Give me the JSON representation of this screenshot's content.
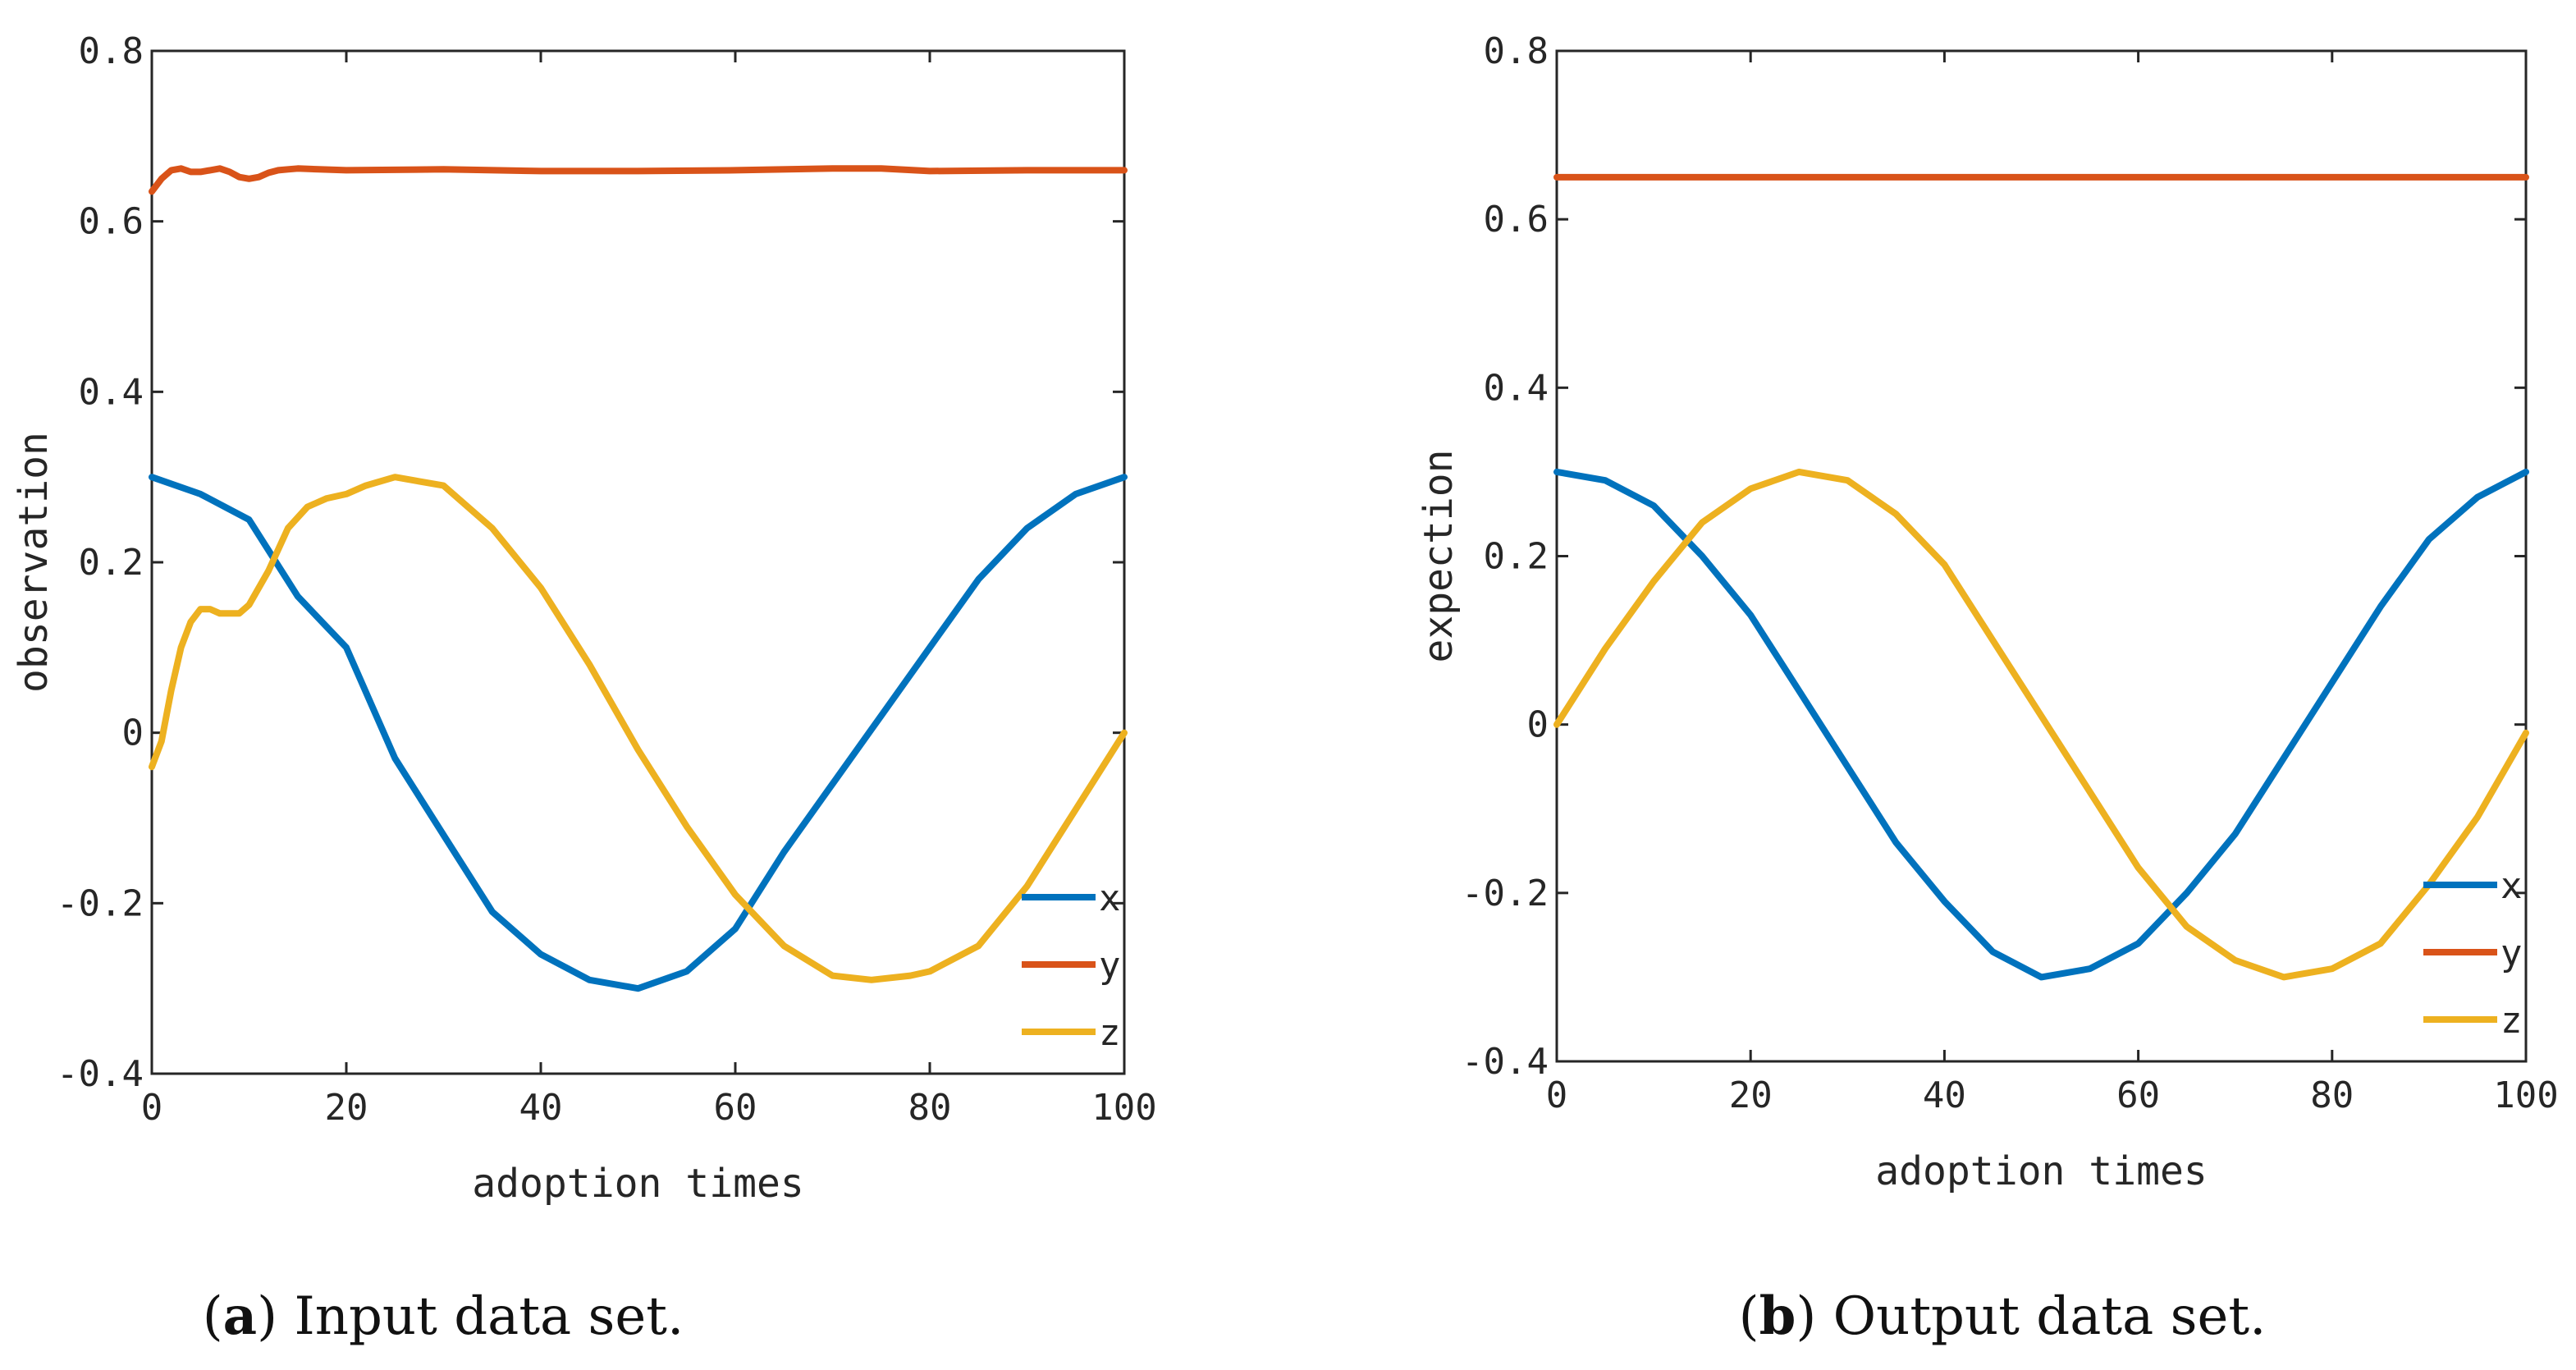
{
  "colors": {
    "x": "#0072BD",
    "y": "#D95319",
    "z": "#EDB120"
  },
  "chart_data": [
    {
      "type": "line",
      "caption_label": "a",
      "caption_text": "Input data set.",
      "xlabel": "adoption times",
      "ylabel": "observation",
      "xlim": [
        0,
        100
      ],
      "ylim": [
        -0.4,
        0.8
      ],
      "xticks": [
        "0",
        "20",
        "40",
        "60",
        "80",
        "100"
      ],
      "yticks": [
        "0.8",
        "0.6",
        "0.4",
        "0.2",
        "0",
        "-0.2",
        "-0.4"
      ],
      "legend": [
        "x",
        "y",
        "z"
      ],
      "legend_position": "bottom-right",
      "series": [
        {
          "name": "x",
          "x": [
            0,
            5,
            10,
            15,
            20,
            25,
            30,
            35,
            40,
            45,
            50,
            55,
            60,
            65,
            70,
            75,
            80,
            85,
            90,
            95,
            100
          ],
          "y": [
            0.3,
            0.28,
            0.25,
            0.16,
            0.1,
            -0.03,
            -0.12,
            -0.21,
            -0.26,
            -0.29,
            -0.3,
            -0.28,
            -0.23,
            -0.14,
            -0.06,
            0.02,
            0.1,
            0.18,
            0.24,
            0.28,
            0.3
          ]
        },
        {
          "name": "y",
          "x": [
            0,
            1,
            2,
            3,
            4,
            5,
            6,
            7,
            8,
            9,
            10,
            11,
            12,
            13,
            14,
            15,
            20,
            30,
            40,
            50,
            60,
            70,
            75,
            80,
            90,
            100
          ],
          "y": [
            0.635,
            0.65,
            0.66,
            0.662,
            0.658,
            0.658,
            0.66,
            0.662,
            0.658,
            0.652,
            0.65,
            0.652,
            0.657,
            0.66,
            0.661,
            0.662,
            0.66,
            0.661,
            0.659,
            0.659,
            0.66,
            0.662,
            0.662,
            0.659,
            0.66,
            0.66
          ]
        },
        {
          "name": "z",
          "x": [
            0,
            1,
            2,
            3,
            4,
            5,
            6,
            7,
            8,
            9,
            10,
            12,
            14,
            16,
            18,
            20,
            22,
            25,
            30,
            35,
            40,
            45,
            50,
            55,
            60,
            65,
            70,
            74,
            78,
            80,
            85,
            90,
            95,
            100
          ],
          "y": [
            -0.04,
            -0.01,
            0.05,
            0.1,
            0.13,
            0.145,
            0.145,
            0.14,
            0.14,
            0.14,
            0.15,
            0.19,
            0.24,
            0.265,
            0.275,
            0.28,
            0.29,
            0.3,
            0.29,
            0.24,
            0.17,
            0.08,
            -0.02,
            -0.11,
            -0.19,
            -0.25,
            -0.285,
            -0.29,
            -0.285,
            -0.28,
            -0.25,
            -0.18,
            -0.09,
            0.0
          ]
        }
      ]
    },
    {
      "type": "line",
      "caption_label": "b",
      "caption_text": "Output data set.",
      "xlabel": "adoption times",
      "ylabel": "expection",
      "xlim": [
        0,
        100
      ],
      "ylim": [
        -0.4,
        0.8
      ],
      "xticks": [
        "0",
        "20",
        "40",
        "60",
        "80",
        "100"
      ],
      "yticks": [
        "0.8",
        "0.6",
        "0.4",
        "0.2",
        "0",
        "-0.2",
        "-0.4"
      ],
      "legend": [
        "x",
        "y",
        "z"
      ],
      "legend_position": "bottom-right",
      "series": [
        {
          "name": "x",
          "x": [
            0,
            5,
            10,
            15,
            20,
            25,
            30,
            35,
            40,
            45,
            50,
            55,
            60,
            65,
            70,
            75,
            80,
            85,
            90,
            95,
            100
          ],
          "y": [
            0.3,
            0.29,
            0.26,
            0.2,
            0.13,
            0.04,
            -0.05,
            -0.14,
            -0.21,
            -0.27,
            -0.3,
            -0.29,
            -0.26,
            -0.2,
            -0.13,
            -0.04,
            0.05,
            0.14,
            0.22,
            0.27,
            0.3
          ]
        },
        {
          "name": "y",
          "x": [
            0,
            100
          ],
          "y": [
            0.65,
            0.65
          ]
        },
        {
          "name": "z",
          "x": [
            0,
            5,
            10,
            15,
            20,
            25,
            30,
            35,
            40,
            45,
            50,
            55,
            60,
            65,
            70,
            75,
            80,
            85,
            90,
            95,
            100
          ],
          "y": [
            0.0,
            0.09,
            0.17,
            0.24,
            0.28,
            0.3,
            0.29,
            0.25,
            0.19,
            0.1,
            0.01,
            -0.08,
            -0.17,
            -0.24,
            -0.28,
            -0.3,
            -0.29,
            -0.26,
            -0.19,
            -0.11,
            -0.01
          ]
        }
      ]
    }
  ]
}
